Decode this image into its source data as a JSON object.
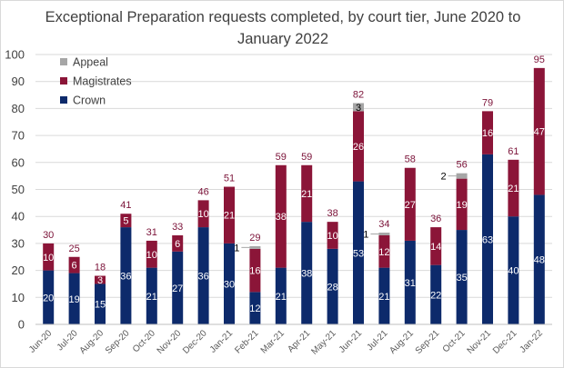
{
  "chart_data": {
    "type": "bar",
    "stacked": true,
    "title": "Exceptional Preparation requests completed, by court tier, June 2020 to January 2022",
    "xlabel": "",
    "ylabel": "",
    "ylim": [
      0,
      100
    ],
    "yticks": [
      0,
      10,
      20,
      30,
      40,
      50,
      60,
      70,
      80,
      90,
      100
    ],
    "grid": true,
    "legend_position": "top-left",
    "categories": [
      "Jun-20",
      "Jul-20",
      "Aug-20",
      "Sep-20",
      "Oct-20",
      "Nov-20",
      "Dec-20",
      "Jan-21",
      "Feb-21",
      "Mar-21",
      "Apr-21",
      "May-21",
      "Jun-21",
      "Jul-21",
      "Aug-21",
      "Sep-21",
      "Oct-21",
      "Nov-21",
      "Dec-21",
      "Jan-22"
    ],
    "series": [
      {
        "name": "Crown",
        "color": "#0d2a6b",
        "values": [
          20,
          19,
          15,
          36,
          21,
          27,
          36,
          30,
          12,
          21,
          38,
          28,
          53,
          21,
          31,
          22,
          35,
          63,
          40,
          48
        ]
      },
      {
        "name": "Magistrates",
        "color": "#8b1538",
        "values": [
          10,
          6,
          3,
          5,
          10,
          6,
          10,
          21,
          16,
          38,
          21,
          10,
          26,
          12,
          27,
          14,
          19,
          16,
          21,
          47
        ]
      },
      {
        "name": "Appeal",
        "color": "#a6a6a6",
        "values": [
          0,
          0,
          0,
          0,
          0,
          0,
          0,
          0,
          1,
          0,
          0,
          0,
          3,
          1,
          0,
          0,
          2,
          0,
          0,
          0
        ]
      }
    ],
    "totals": [
      30,
      25,
      18,
      41,
      31,
      33,
      46,
      51,
      29,
      59,
      59,
      38,
      82,
      34,
      58,
      36,
      56,
      79,
      61,
      95
    ],
    "legend_order": [
      "Appeal",
      "Magistrates",
      "Crown"
    ]
  }
}
